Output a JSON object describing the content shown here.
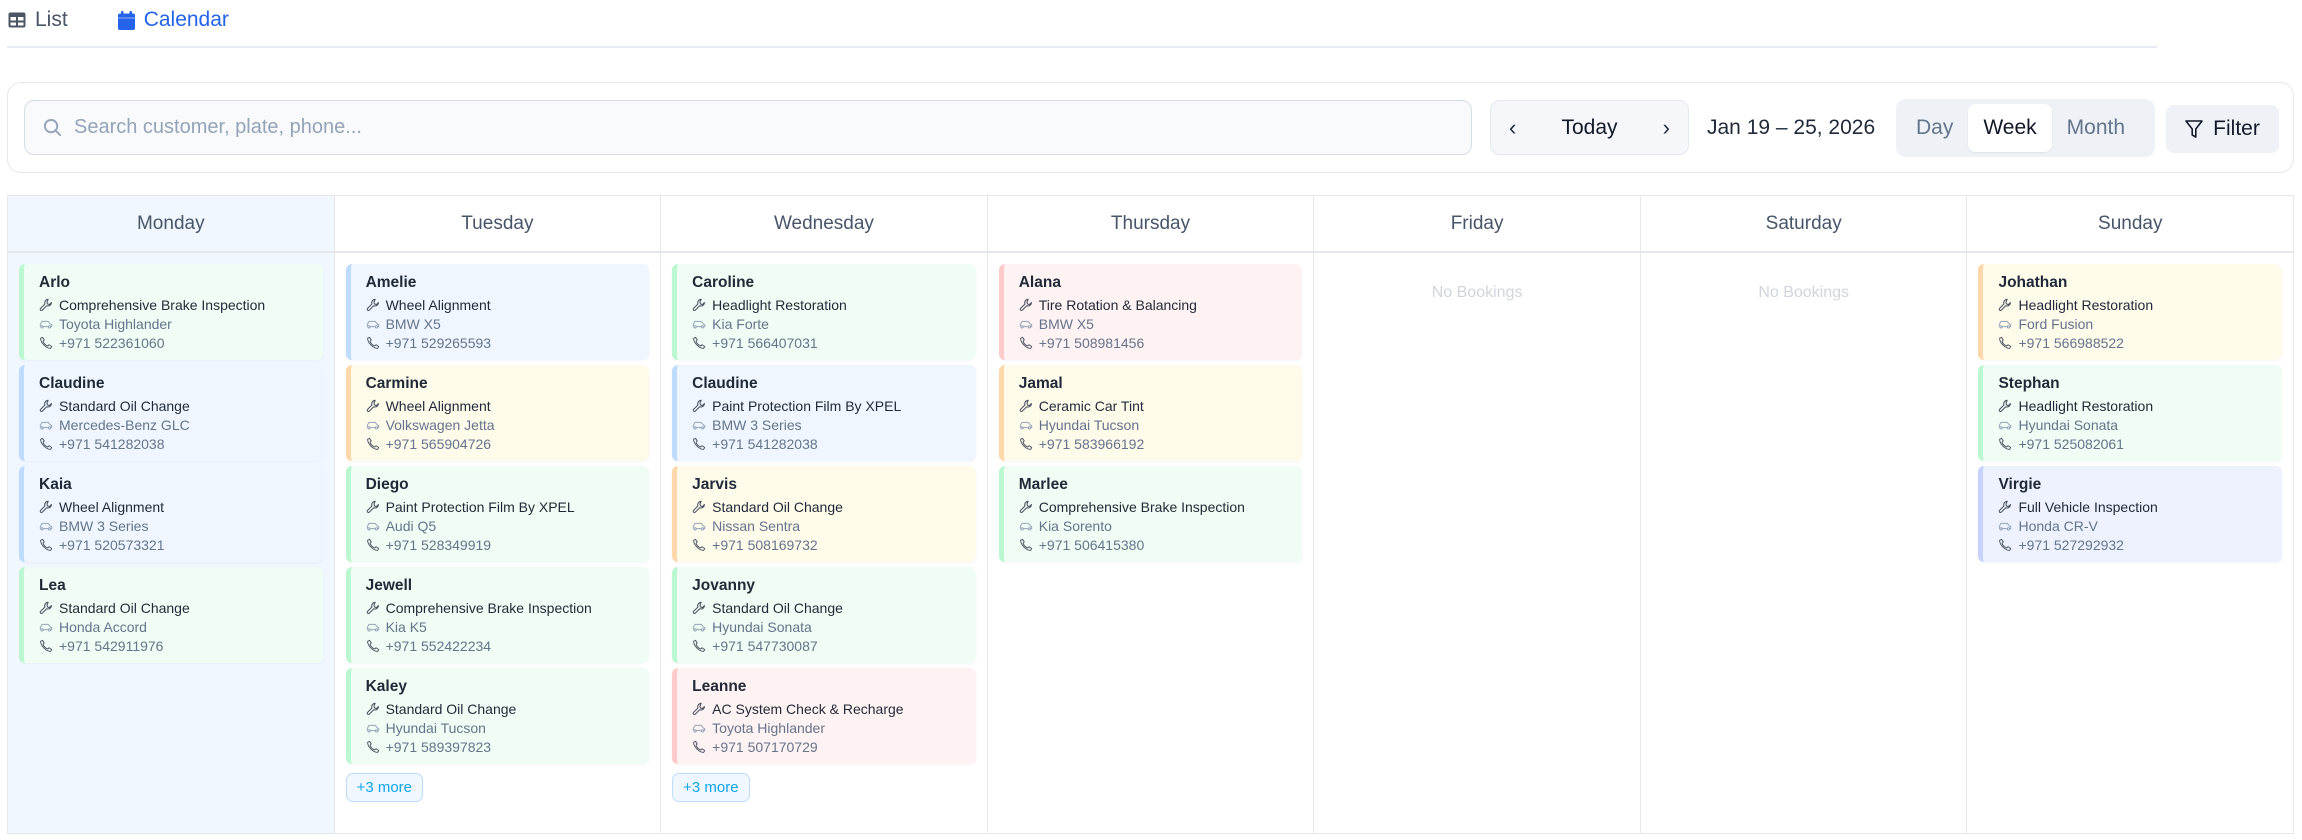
{
  "tabs": [
    {
      "label": "List",
      "icon": "table-icon",
      "active": false
    },
    {
      "label": "Calendar",
      "icon": "calendar-icon",
      "active": true
    }
  ],
  "toolbar": {
    "search_placeholder": "Search customer, plate, phone...",
    "search_value": "",
    "today_label": "Today",
    "date_range": "Jan 19 – 25, 2026",
    "views": [
      {
        "label": "Day",
        "active": false
      },
      {
        "label": "Week",
        "active": true
      },
      {
        "label": "Month",
        "active": false
      }
    ],
    "filter_label": "Filter"
  },
  "colors": {
    "green": {
      "bg": "#f0fdf4",
      "stripe": "#bbf7d0"
    },
    "blue": {
      "bg": "#eff6ff",
      "stripe": "#bfdbfe"
    },
    "yellow": {
      "bg": "#fefbeb",
      "stripe": "#fed7aa"
    },
    "red": {
      "bg": "#fef2f2",
      "stripe": "#fecaca"
    },
    "indigo": {
      "bg": "#eef2ff",
      "stripe": "#c7d2fe"
    },
    "accent": "#2563eb"
  },
  "empty_label": "No Bookings",
  "days": [
    {
      "name": "Monday",
      "today": true,
      "bookings": [
        {
          "customer": "Arlo",
          "service": "Comprehensive Brake Inspection",
          "vehicle": "Toyota Highlander",
          "phone": "+971 522361060",
          "color": "green"
        },
        {
          "customer": "Claudine",
          "service": "Standard Oil Change",
          "vehicle": "Mercedes-Benz GLC",
          "phone": "+971 541282038",
          "color": "blue"
        },
        {
          "customer": "Kaia",
          "service": "Wheel Alignment",
          "vehicle": "BMW 3 Series",
          "phone": "+971 520573321",
          "color": "blue"
        },
        {
          "customer": "Lea",
          "service": "Standard Oil Change",
          "vehicle": "Honda Accord",
          "phone": "+971 542911976",
          "color": "green"
        }
      ],
      "more": ""
    },
    {
      "name": "Tuesday",
      "bookings": [
        {
          "customer": "Amelie",
          "service": "Wheel Alignment",
          "vehicle": "BMW X5",
          "phone": "+971 529265593",
          "color": "blue"
        },
        {
          "customer": "Carmine",
          "service": "Wheel Alignment",
          "vehicle": "Volkswagen Jetta",
          "phone": "+971 565904726",
          "color": "yellow"
        },
        {
          "customer": "Diego",
          "service": "Paint Protection Film By XPEL",
          "vehicle": "Audi Q5",
          "phone": "+971 528349919",
          "color": "green"
        },
        {
          "customer": "Jewell",
          "service": "Comprehensive Brake Inspection",
          "vehicle": "Kia K5",
          "phone": "+971 552422234",
          "color": "green"
        },
        {
          "customer": "Kaley",
          "service": "Standard Oil Change",
          "vehicle": "Hyundai Tucson",
          "phone": "+971 589397823",
          "color": "green"
        }
      ],
      "more": "+3 more"
    },
    {
      "name": "Wednesday",
      "bookings": [
        {
          "customer": "Caroline",
          "service": "Headlight Restoration",
          "vehicle": "Kia Forte",
          "phone": "+971 566407031",
          "color": "green"
        },
        {
          "customer": "Claudine",
          "service": "Paint Protection Film By XPEL",
          "vehicle": "BMW 3 Series",
          "phone": "+971 541282038",
          "color": "blue"
        },
        {
          "customer": "Jarvis",
          "service": "Standard Oil Change",
          "vehicle": "Nissan Sentra",
          "phone": "+971 508169732",
          "color": "yellow"
        },
        {
          "customer": "Jovanny",
          "service": "Standard Oil Change",
          "vehicle": "Hyundai Sonata",
          "phone": "+971 547730087",
          "color": "green"
        },
        {
          "customer": "Leanne",
          "service": "AC System Check & Recharge",
          "vehicle": "Toyota Highlander",
          "phone": "+971 507170729",
          "color": "red"
        }
      ],
      "more": "+3 more"
    },
    {
      "name": "Thursday",
      "bookings": [
        {
          "customer": "Alana",
          "service": "Tire Rotation & Balancing",
          "vehicle": "BMW X5",
          "phone": "+971 508981456",
          "color": "red"
        },
        {
          "customer": "Jamal",
          "service": "Ceramic Car Tint",
          "vehicle": "Hyundai Tucson",
          "phone": "+971 583966192",
          "color": "yellow"
        },
        {
          "customer": "Marlee",
          "service": "Comprehensive Brake Inspection",
          "vehicle": "Kia Sorento",
          "phone": "+971 506415380",
          "color": "green"
        }
      ],
      "more": ""
    },
    {
      "name": "Friday",
      "bookings": [],
      "more": ""
    },
    {
      "name": "Saturday",
      "bookings": [],
      "more": ""
    },
    {
      "name": "Sunday",
      "bookings": [
        {
          "customer": "Johathan",
          "service": "Headlight Restoration",
          "vehicle": "Ford Fusion",
          "phone": "+971 566988522",
          "color": "yellow"
        },
        {
          "customer": "Stephan",
          "service": "Headlight Restoration",
          "vehicle": "Hyundai Sonata",
          "phone": "+971 525082061",
          "color": "green"
        },
        {
          "customer": "Virgie",
          "service": "Full Vehicle Inspection",
          "vehicle": "Honda CR-V",
          "phone": "+971 527292932",
          "color": "indigo"
        }
      ],
      "more": ""
    }
  ]
}
